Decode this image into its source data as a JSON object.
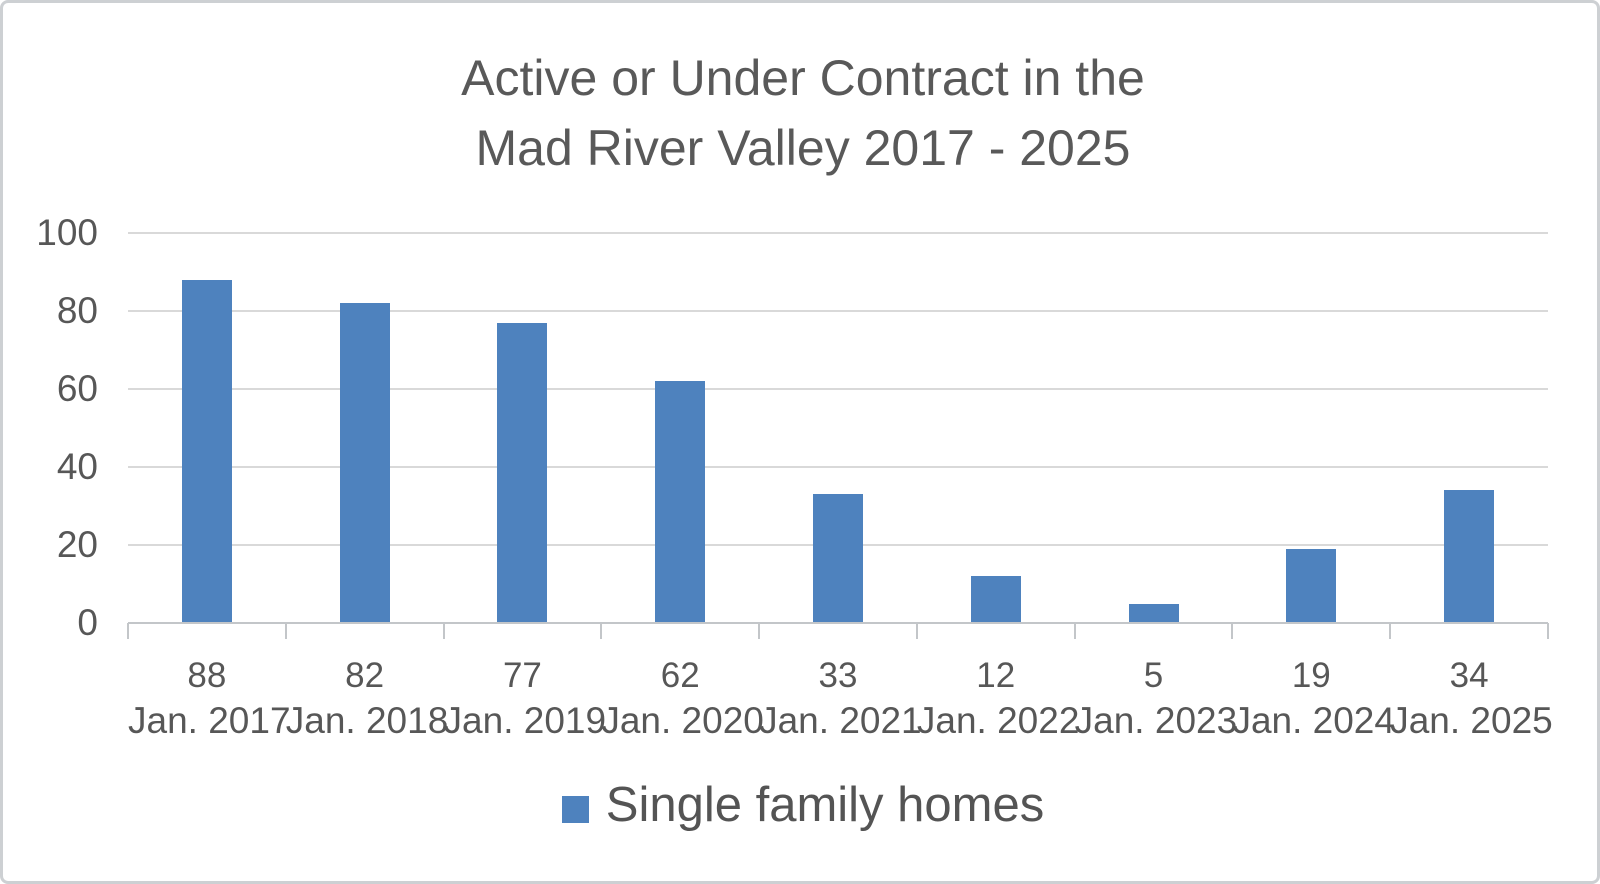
{
  "chart_data": {
    "type": "bar",
    "title": "Active or Under Contract in the Mad River Valley 2017 - 2025",
    "title_lines": [
      "Active or Under Contract in the",
      "Mad River Valley 2017 - 2025"
    ],
    "categories": [
      "Jan. 2017",
      "Jan. 2018",
      "Jan. 2019",
      "Jan. 2020",
      "Jan. 2021",
      "Jan. 2022",
      "Jan. 2023",
      "Jan. 2024",
      "Jan. 2025"
    ],
    "values": [
      88,
      82,
      77,
      62,
      33,
      12,
      5,
      19,
      34
    ],
    "data_labels": [
      "88",
      "82",
      "77",
      "62",
      "33",
      "12",
      "5",
      "19",
      "34"
    ],
    "series": [
      {
        "name": "Single family homes",
        "values": [
          88,
          82,
          77,
          62,
          33,
          12,
          5,
          19,
          34
        ]
      }
    ],
    "xlabel": "",
    "ylabel": "",
    "ylim": [
      0,
      100
    ],
    "y_ticks": [
      0,
      20,
      40,
      60,
      80,
      100
    ],
    "grid": true,
    "legend_position": "bottom",
    "legend_label": "Single family homes",
    "colors": {
      "bar": "#4e82be",
      "title_text": "#595959",
      "axis_text": "#575757",
      "gridline": "#d9d9d9",
      "axis_line": "#c3c6c9",
      "frame_border": "#cdd0d3",
      "background": "#ffffff"
    }
  }
}
